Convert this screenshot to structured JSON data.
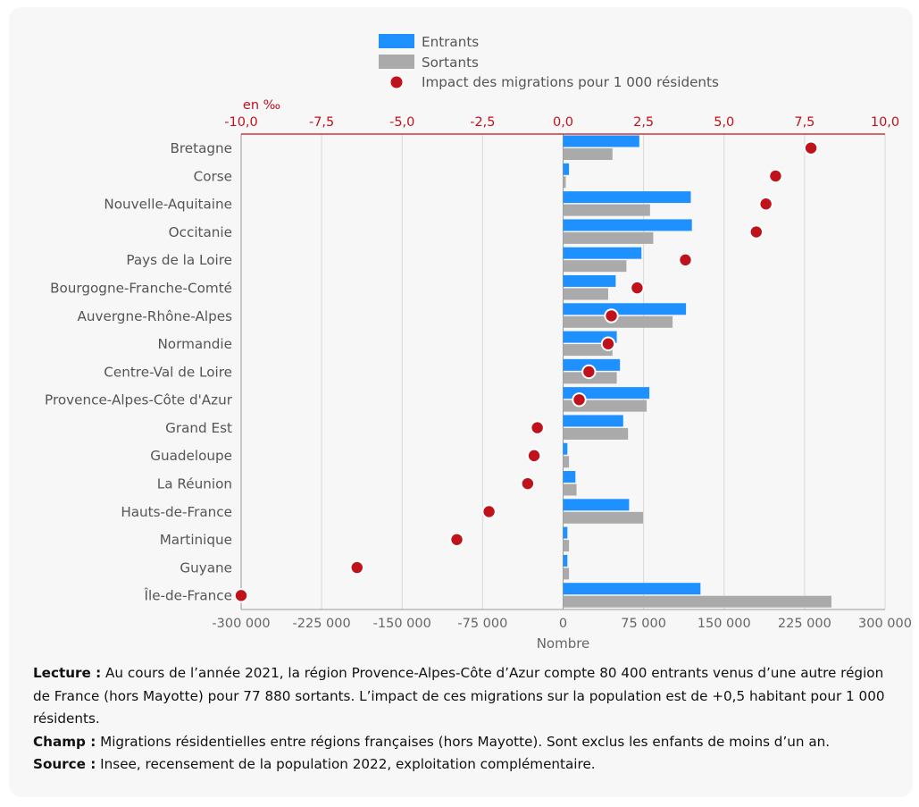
{
  "chart_data": {
    "type": "bar",
    "categories": [
      "Bretagne",
      "Corse",
      "Nouvelle-Aquitaine",
      "Occitanie",
      "Pays de la Loire",
      "Bourgogne-Franche-Comté",
      "Auvergne-Rhône-Alpes",
      "Normandie",
      "Centre-Val de Loire",
      "Provence-Alpes-Côte d'Azur",
      "Grand Est",
      "Guadeloupe",
      "La Réunion",
      "Hauts-de-France",
      "Martinique",
      "Guyane",
      "Île-de-France"
    ],
    "series": [
      {
        "name": "Entrants",
        "color": "#1e90ff",
        "values": [
          71000,
          5500,
          119000,
          120000,
          73000,
          49000,
          114500,
          50000,
          53000,
          80400,
          56000,
          4000,
          11500,
          61500,
          4000,
          4000,
          128000
        ]
      },
      {
        "name": "Sortants",
        "color": "#aaaaaa",
        "values": [
          46000,
          2500,
          81000,
          84000,
          59000,
          42000,
          102000,
          46000,
          50000,
          77880,
          60500,
          5500,
          12500,
          74500,
          5500,
          5500,
          250000
        ]
      },
      {
        "name": "Impact des migrations pour 1 000 résidents",
        "color": "#c0121b",
        "values": [
          7.7,
          6.6,
          6.3,
          6.0,
          3.8,
          2.3,
          1.5,
          1.4,
          0.8,
          0.5,
          -0.8,
          -0.9,
          -1.1,
          -2.3,
          -3.3,
          -6.4,
          -10.0
        ]
      }
    ],
    "x_bottom": {
      "label": "Nombre",
      "range": [
        -300000,
        300000
      ],
      "ticks": [
        "-300 000",
        "-225 000",
        "-150 000",
        "-75 000",
        "0",
        "75 000",
        "150 000",
        "225 000",
        "300 000"
      ]
    },
    "x_top": {
      "unit": "en ‰",
      "range": [
        -10,
        10
      ],
      "ticks": [
        "-10,0",
        "-7,5",
        "-5,0",
        "-2,5",
        "0,0",
        "2,5",
        "5,0",
        "7,5",
        "10,0"
      ]
    },
    "grid": true,
    "legend_position": "top-center"
  },
  "notes": {
    "lecture_label": "Lecture :",
    "lecture_text": " Au cours de l’année 2021, la région Provence-Alpes-Côte d’Azur compte 80 400 entrants venus d’une autre région de France (hors Mayotte) pour 77 880 sortants. L’impact de ces migrations sur la population est de +0,5 habitant pour 1 000 résidents.",
    "champ_label": "Champ :",
    "champ_text": " Migrations résidentielles entre régions françaises (hors Mayotte). Sont exclus les enfants de moins d’un an.",
    "source_label": "Source :",
    "source_text": " Insee, recensement de la population 2022, exploitation complémentaire."
  }
}
